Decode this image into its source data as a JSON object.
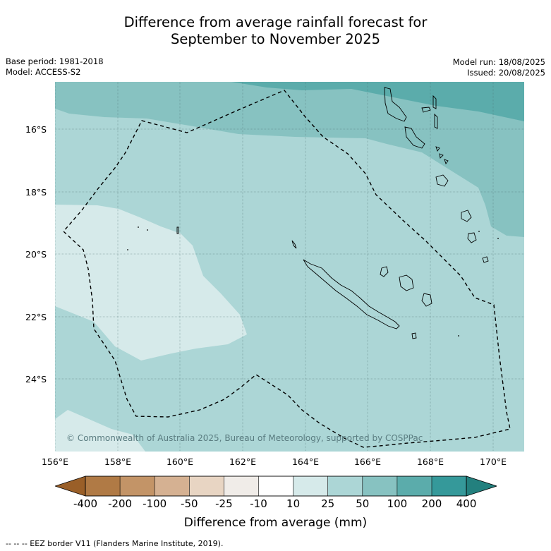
{
  "title": {
    "line1": "Difference from average rainfall forecast for",
    "line2": "September to November 2025"
  },
  "meta": {
    "base_period": "Base period: 1981-2018",
    "model": "Model: ACCESS-S2",
    "model_run": "Model run: 18/08/2025",
    "issued": "Issued: 20/08/2025"
  },
  "map": {
    "latitude_labels": [
      "16°S",
      "18°S",
      "20°S",
      "22°S",
      "24°S"
    ],
    "longitude_labels": [
      "156°E",
      "158°E",
      "160°E",
      "162°E",
      "164°E",
      "166°E",
      "168°E",
      "170°E"
    ],
    "credit": "© Commonwealth of Australia 2025, Bureau of Meteorology, supported by COSPPac"
  },
  "colorbar": {
    "title": "Difference from average (mm)",
    "tick_labels": [
      "-400",
      "-200",
      "-100",
      "-50",
      "-25",
      "-10",
      "10",
      "25",
      "50",
      "100",
      "200",
      "400"
    ],
    "colors": [
      "#9a5f28",
      "#b07a45",
      "#c39467",
      "#d5b192",
      "#e8d5c3",
      "#f0ece8",
      "#ffffff",
      "#d6eaea",
      "#acd6d6",
      "#87c2c1",
      "#5bacab",
      "#35999a",
      "#23807e"
    ]
  },
  "legend": {
    "eez_line": "--  --  -- EEZ border V11 (Flanders Marine Institute, 2019)."
  }
}
